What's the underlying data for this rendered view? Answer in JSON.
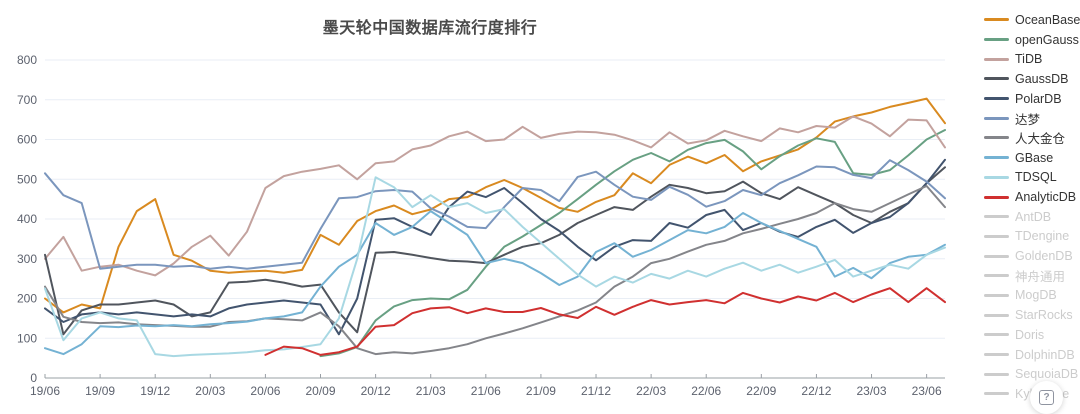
{
  "title": "墨天轮中国数据库流行度排行",
  "help_button": {
    "icon": "?"
  },
  "chart_data": {
    "type": "line",
    "title": "墨天轮中国数据库流行度排行",
    "xlabel": "",
    "ylabel": "",
    "ylim": [
      0,
      800
    ],
    "y_ticks": [
      0,
      100,
      200,
      300,
      400,
      500,
      600,
      700,
      800
    ],
    "grid": true,
    "grid_color": "#e9eef5",
    "axis_line_color": "#9aa0a6",
    "axis_label_color": "#5d626e",
    "legend_position": "right",
    "x_tick_every": 3,
    "x": [
      "19/06",
      "19/07",
      "19/08",
      "19/09",
      "19/10",
      "19/11",
      "19/12",
      "20/01",
      "20/02",
      "20/03",
      "20/04",
      "20/05",
      "20/06",
      "20/07",
      "20/08",
      "20/09",
      "20/10",
      "20/11",
      "20/12",
      "21/01",
      "21/02",
      "21/03",
      "21/04",
      "21/05",
      "21/06",
      "21/07",
      "21/08",
      "21/09",
      "21/10",
      "21/11",
      "21/12",
      "22/01",
      "22/02",
      "22/03",
      "22/04",
      "22/05",
      "22/06",
      "22/07",
      "22/08",
      "22/09",
      "22/10",
      "22/11",
      "22/12",
      "23/01",
      "23/02",
      "23/03",
      "23/04",
      "23/05",
      "23/06",
      "23/07"
    ],
    "series": [
      {
        "name": "OceanBase",
        "color": "#d98a20",
        "active": true,
        "values": [
          200,
          165,
          185,
          175,
          330,
          420,
          450,
          310,
          295,
          270,
          265,
          268,
          270,
          265,
          272,
          360,
          335,
          395,
          420,
          434,
          412,
          424,
          450,
          455,
          480,
          498,
          478,
          453,
          428,
          418,
          443,
          460,
          515,
          490,
          536,
          557,
          540,
          561,
          520,
          545,
          560,
          575,
          605,
          645,
          658,
          668,
          682,
          692,
          703,
          641
        ]
      },
      {
        "name": "openGauss",
        "color": "#68a083",
        "active": true,
        "values": [
          null,
          null,
          null,
          null,
          null,
          null,
          null,
          null,
          null,
          null,
          null,
          null,
          null,
          null,
          null,
          55,
          62,
          78,
          145,
          180,
          196,
          200,
          198,
          222,
          280,
          330,
          356,
          385,
          415,
          450,
          486,
          520,
          549,
          566,
          545,
          574,
          591,
          599,
          570,
          525,
          558,
          585,
          603,
          594,
          515,
          511,
          523,
          560,
          600,
          624
        ]
      },
      {
        "name": "TiDB",
        "color": "#c3a29e",
        "active": true,
        "values": [
          300,
          355,
          270,
          280,
          285,
          270,
          258,
          288,
          330,
          358,
          308,
          368,
          478,
          508,
          519,
          526,
          535,
          500,
          540,
          545,
          575,
          585,
          608,
          620,
          596,
          600,
          632,
          604,
          614,
          620,
          618,
          612,
          598,
          580,
          618,
          590,
          598,
          622,
          608,
          596,
          628,
          618,
          634,
          630,
          658,
          640,
          608,
          650,
          648,
          580
        ]
      },
      {
        "name": "GaussDB",
        "color": "#50555d",
        "active": true,
        "values": [
          310,
          110,
          170,
          185,
          185,
          190,
          195,
          185,
          155,
          165,
          240,
          242,
          247,
          240,
          230,
          235,
          165,
          115,
          315,
          317,
          310,
          302,
          295,
          293,
          289,
          310,
          330,
          339,
          360,
          390,
          410,
          430,
          423,
          456,
          486,
          478,
          465,
          470,
          494,
          465,
          450,
          480,
          460,
          440,
          410,
          390,
          418,
          440,
          490,
          530
        ]
      },
      {
        "name": "PolarDB",
        "color": "#42546e",
        "active": true,
        "values": [
          175,
          141,
          160,
          165,
          160,
          165,
          160,
          155,
          160,
          155,
          175,
          185,
          190,
          195,
          190,
          185,
          110,
          200,
          398,
          402,
          380,
          360,
          430,
          469,
          455,
          478,
          440,
          400,
          370,
          330,
          296,
          330,
          347,
          345,
          390,
          378,
          410,
          423,
          372,
          390,
          368,
          355,
          380,
          398,
          365,
          390,
          405,
          440,
          490,
          549
        ]
      },
      {
        "name": "达梦",
        "color": "#7b96bd",
        "active": true,
        "values": [
          515,
          460,
          440,
          275,
          280,
          285,
          285,
          280,
          282,
          275,
          280,
          275,
          280,
          285,
          290,
          375,
          452,
          455,
          470,
          473,
          469,
          427,
          406,
          380,
          377,
          430,
          478,
          473,
          445,
          506,
          519,
          486,
          456,
          448,
          481,
          461,
          431,
          445,
          473,
          460,
          490,
          510,
          532,
          530,
          511,
          503,
          548,
          523,
          494,
          452
        ]
      },
      {
        "name": "人大金仓",
        "color": "#84858a",
        "active": true,
        "values": [
          230,
          154,
          141,
          138,
          140,
          135,
          133,
          131,
          129,
          129,
          141,
          143,
          150,
          148,
          145,
          165,
          130,
          75,
          60,
          65,
          62,
          68,
          75,
          85,
          100,
          112,
          125,
          140,
          155,
          170,
          190,
          230,
          255,
          289,
          300,
          318,
          335,
          345,
          364,
          375,
          388,
          400,
          415,
          440,
          425,
          418,
          440,
          462,
          483,
          430
        ]
      },
      {
        "name": "GBase",
        "color": "#74b2d3",
        "active": true,
        "values": [
          75,
          60,
          85,
          130,
          128,
          132,
          130,
          133,
          130,
          135,
          138,
          142,
          150,
          155,
          165,
          230,
          280,
          310,
          390,
          360,
          380,
          420,
          390,
          360,
          289,
          300,
          289,
          264,
          234,
          255,
          317,
          339,
          305,
          322,
          347,
          372,
          364,
          380,
          415,
          390,
          370,
          350,
          330,
          255,
          277,
          251,
          289,
          305,
          310,
          335
        ]
      },
      {
        "name": "TDSQL",
        "color": "#a8d8e3",
        "active": true,
        "values": [
          225,
          95,
          150,
          165,
          150,
          145,
          60,
          55,
          58,
          60,
          62,
          65,
          70,
          72,
          78,
          85,
          150,
          300,
          505,
          480,
          430,
          460,
          430,
          440,
          415,
          425,
          380,
          340,
          300,
          260,
          230,
          255,
          240,
          262,
          250,
          270,
          255,
          275,
          290,
          270,
          285,
          265,
          280,
          297,
          255,
          270,
          285,
          275,
          310,
          328
        ]
      },
      {
        "name": "AnalyticDB",
        "color": "#d03030",
        "active": true,
        "values": [
          null,
          null,
          null,
          null,
          null,
          null,
          null,
          null,
          null,
          null,
          null,
          null,
          58,
          79,
          75,
          58,
          65,
          79,
          129,
          133,
          163,
          175,
          178,
          163,
          175,
          166,
          166,
          176,
          160,
          151,
          179,
          159,
          179,
          196,
          185,
          191,
          196,
          188,
          214,
          200,
          190,
          205,
          195,
          214,
          191,
          210,
          226,
          191,
          226,
          191
        ]
      },
      {
        "name": "AntDB",
        "color": "#cccccc",
        "active": false,
        "values": []
      },
      {
        "name": "TDengine",
        "color": "#cccccc",
        "active": false,
        "values": []
      },
      {
        "name": "GoldenDB",
        "color": "#cccccc",
        "active": false,
        "values": []
      },
      {
        "name": "神舟通用",
        "color": "#cccccc",
        "active": false,
        "values": []
      },
      {
        "name": "MogDB",
        "color": "#cccccc",
        "active": false,
        "values": []
      },
      {
        "name": "StarRocks",
        "color": "#cccccc",
        "active": false,
        "values": []
      },
      {
        "name": "Doris",
        "color": "#cccccc",
        "active": false,
        "values": []
      },
      {
        "name": "DolphinDB",
        "color": "#cccccc",
        "active": false,
        "values": []
      },
      {
        "name": "SequoiaDB",
        "color": "#cccccc",
        "active": false,
        "values": []
      },
      {
        "name": "Kyligence",
        "color": "#cccccc",
        "active": false,
        "values": []
      }
    ]
  }
}
